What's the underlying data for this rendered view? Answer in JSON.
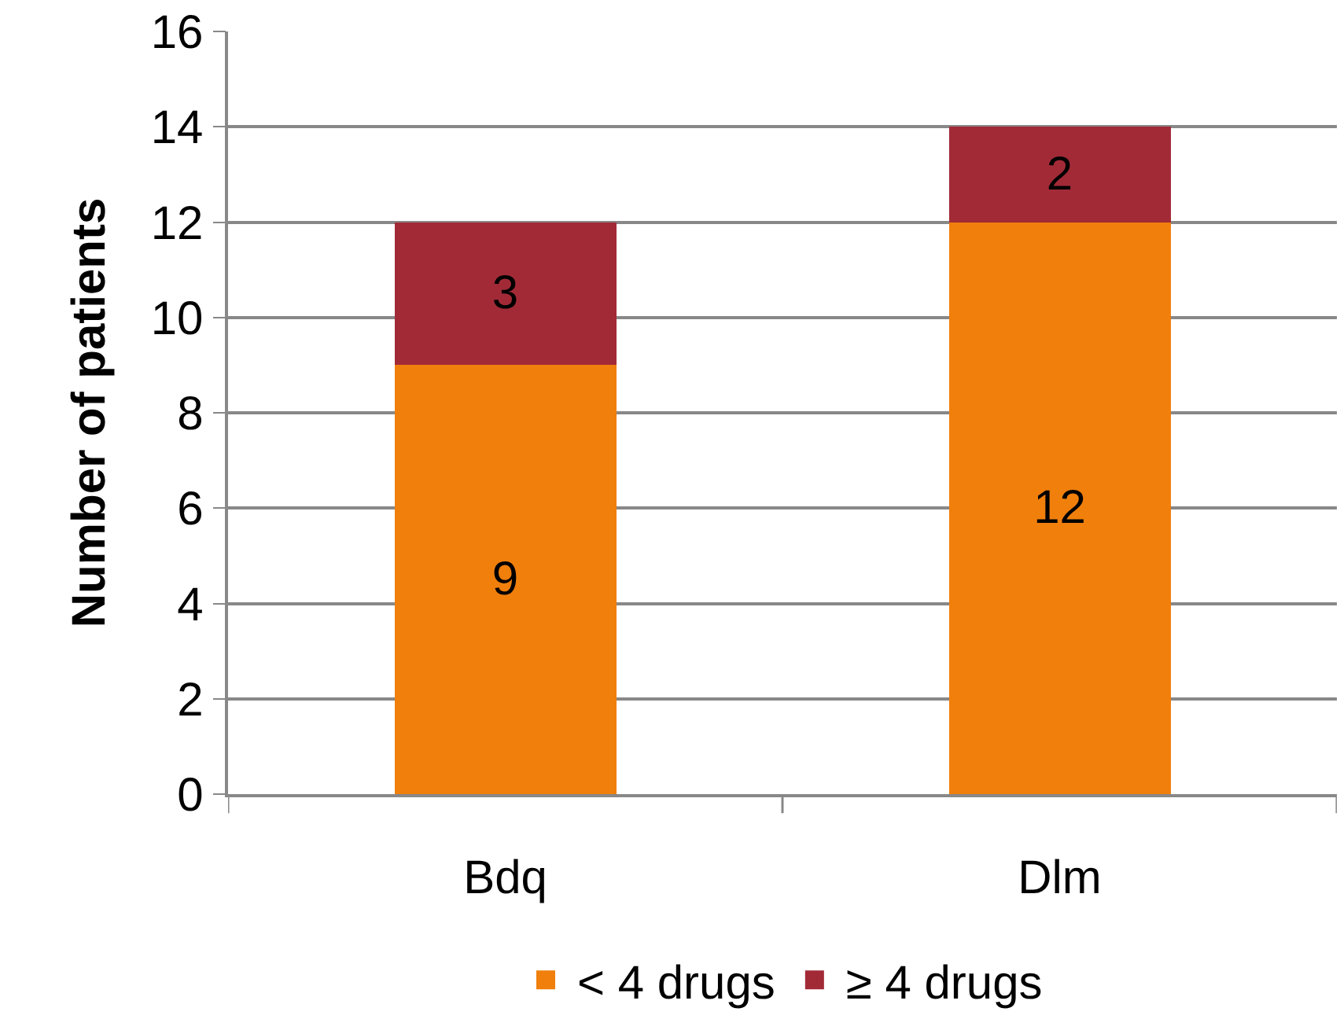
{
  "chart_data": {
    "type": "bar",
    "stacked": true,
    "ylabel": "Number of patients",
    "categories": [
      "Bdq",
      "Dlm"
    ],
    "series": [
      {
        "name": "< 4 drugs",
        "color": "#f07f0c",
        "values": [
          9,
          12
        ]
      },
      {
        "name": "≥ 4 drugs",
        "color": "#a22a37",
        "values": [
          3,
          2
        ]
      }
    ],
    "ylim": [
      0,
      16
    ],
    "yticks": [
      0,
      2,
      4,
      6,
      8,
      10,
      12,
      14,
      16
    ],
    "grid": "y",
    "legend": "bottom",
    "data_labels": true
  }
}
